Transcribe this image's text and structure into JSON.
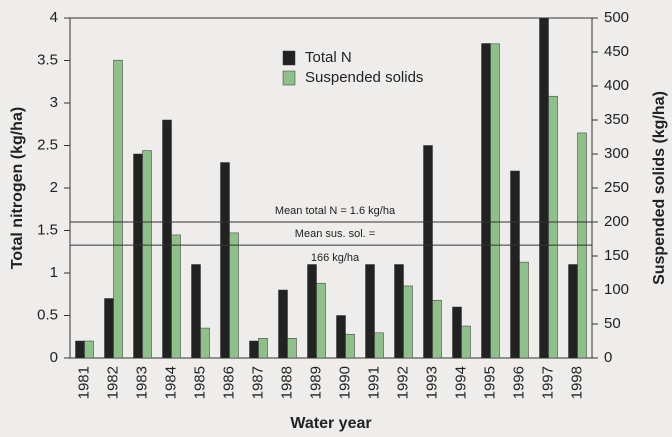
{
  "chart_data": {
    "type": "bar",
    "xlabel": "Water year",
    "ylabel": "Total nitrogen (kg/ha)",
    "y2label": "Suspended solids (kg/ha)",
    "categories": [
      "1981",
      "1982",
      "1983",
      "1984",
      "1985",
      "1986",
      "1987",
      "1988",
      "1989",
      "1990",
      "1991",
      "1992",
      "1993",
      "1994",
      "1995",
      "1996",
      "1997",
      "1998"
    ],
    "series": [
      {
        "name": "Total N",
        "color": "#222222",
        "axis": "y",
        "values": [
          0.2,
          0.7,
          2.4,
          2.8,
          1.1,
          2.3,
          0.2,
          0.8,
          1.1,
          0.5,
          1.1,
          1.1,
          2.5,
          0.6,
          3.7,
          2.2,
          4.0,
          1.1
        ]
      },
      {
        "name": "Suspended solids",
        "color": "#8fc08a",
        "axis": "y2",
        "values": [
          25,
          438,
          305,
          181,
          44,
          184,
          29,
          29,
          110,
          35,
          37,
          106,
          85,
          47,
          462,
          141,
          385,
          331
        ]
      }
    ],
    "ylim": [
      0,
      4
    ],
    "yticks": [
      0,
      0.5,
      1,
      1.5,
      2,
      2.5,
      3,
      3.5,
      4
    ],
    "y2lim": [
      0,
      500
    ],
    "y2ticks": [
      0,
      50,
      100,
      150,
      200,
      250,
      300,
      350,
      400,
      450,
      500
    ],
    "mean_lines": [
      {
        "axis": "y",
        "value": 1.6,
        "label": [
          "Mean total N = 1.6 kg/ha"
        ]
      },
      {
        "axis": "y2",
        "value": 166,
        "label": [
          "Mean sus. sol. =",
          "166 kg/ha"
        ]
      }
    ],
    "legend": "top-center"
  }
}
